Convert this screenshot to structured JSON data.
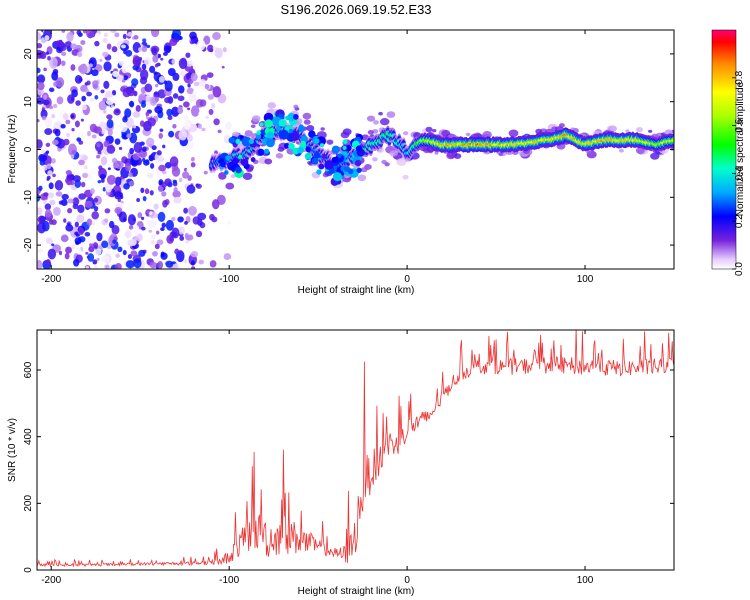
{
  "chart_data": [
    {
      "type": "heatmap",
      "title": "S196.2026.069.19.52.E33",
      "xlabel": "Height of straight line (km)",
      "ylabel": "Frequency (Hz)",
      "xlim": [
        -208,
        150
      ],
      "ylim": [
        -25,
        25
      ],
      "xticks": [
        -200,
        -100,
        0,
        100
      ],
      "yticks": [
        -20,
        -10,
        0,
        10,
        20
      ],
      "xtick_labels": [
        "-200",
        "-100",
        "0",
        "100"
      ],
      "ytick_labels": [
        "-20",
        "-10",
        "0",
        "10",
        "20"
      ],
      "colorbar": {
        "label": "Normalized spectral amplitude",
        "range": [
          0,
          1
        ],
        "ticks": [
          0.0,
          0.2,
          0.4,
          0.6,
          0.8
        ],
        "tick_labels": [
          "0.0",
          "0.2",
          "0.4",
          "0.6",
          "0.8"
        ]
      },
      "ridge": {
        "x": [
          -110,
          -100,
          -90,
          -80,
          -70,
          -60,
          -50,
          -40,
          -30,
          -20,
          -12,
          -5,
          0,
          5,
          10,
          20,
          40,
          60,
          80,
          90,
          100,
          110,
          120,
          130,
          140,
          150
        ],
        "y": [
          -3,
          -2,
          -1,
          3,
          4,
          3,
          -1,
          -3,
          -1,
          1,
          3,
          2,
          -1,
          1,
          2,
          1,
          1,
          1,
          2,
          3,
          1,
          2,
          2,
          2,
          1,
          2
        ],
        "amplitude": [
          0.3,
          0.35,
          0.4,
          0.45,
          0.35,
          0.3,
          0.35,
          0.3,
          0.4,
          0.5,
          0.5,
          0.45,
          0.4,
          0.55,
          0.7,
          0.85,
          0.9,
          0.85,
          0.8,
          0.9,
          0.8,
          0.85,
          0.85,
          0.8,
          0.7,
          0.75
        ]
      },
      "noise_region": {
        "x_from": -208,
        "x_to": -100,
        "amplitude_max": 0.25
      }
    },
    {
      "type": "line",
      "title": "",
      "xlabel": "Height of straight line (km)",
      "ylabel": "SNR (10 * v/v)",
      "xlim": [
        -208,
        150
      ],
      "ylim": [
        0,
        720
      ],
      "xticks": [
        -200,
        -100,
        0,
        100
      ],
      "yticks": [
        0,
        200,
        400,
        600
      ],
      "xtick_labels": [
        "-200",
        "-100",
        "0",
        "100"
      ],
      "ytick_labels": [
        "0",
        "200",
        "400",
        "600"
      ],
      "color": "#ee3333",
      "series": [
        {
          "name": "SNR",
          "x": [
            -208,
            -180,
            -150,
            -120,
            -105,
            -100,
            -95,
            -90,
            -85,
            -80,
            -75,
            -70,
            -65,
            -60,
            -55,
            -50,
            -45,
            -40,
            -35,
            -30,
            -25,
            -20,
            -15,
            -10,
            -5,
            0,
            5,
            10,
            15,
            20,
            25,
            30,
            40,
            50,
            60,
            80,
            100,
            120,
            140,
            150
          ],
          "y": [
            15,
            15,
            18,
            20,
            25,
            40,
            70,
            100,
            120,
            100,
            90,
            110,
            100,
            90,
            80,
            70,
            60,
            50,
            45,
            80,
            250,
            300,
            330,
            380,
            380,
            420,
            440,
            450,
            480,
            520,
            560,
            590,
            610,
            610,
            610,
            615,
            610,
            605,
            610,
            615
          ],
          "spike_amplitude": [
            8,
            8,
            8,
            10,
            20,
            40,
            70,
            100,
            120,
            130,
            110,
            120,
            110,
            90,
            70,
            50,
            40,
            30,
            60,
            120,
            180,
            120,
            90,
            80,
            70,
            60,
            60,
            60,
            50,
            45,
            45,
            45,
            45,
            45,
            50,
            50,
            55,
            50,
            50,
            50
          ]
        }
      ]
    }
  ]
}
